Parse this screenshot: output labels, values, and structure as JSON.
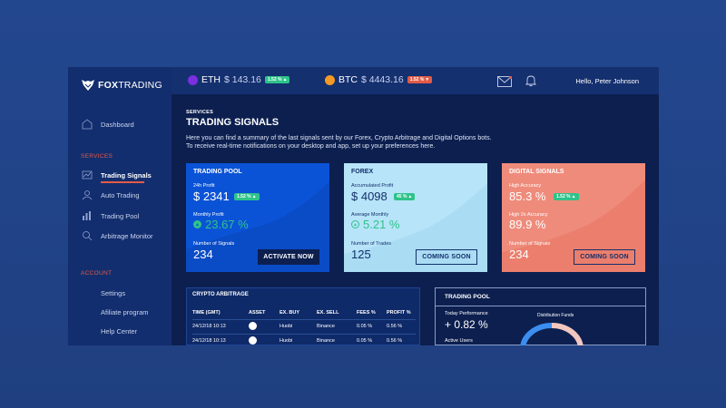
{
  "app": {
    "logo_fox": "FOX",
    "logo_trading": "TRADING"
  },
  "sidebar": {
    "items": [
      {
        "label": "Dashboard"
      },
      {
        "label": "Trading Signals"
      },
      {
        "label": "Auto Trading"
      },
      {
        "label": "Trading Pool"
      },
      {
        "label": "Arbitrage Monitor"
      }
    ],
    "services_label": "SERVICES",
    "account_label": "ACCOUNT",
    "account_items": [
      {
        "label": "Settings"
      },
      {
        "label": "Afiliate program"
      },
      {
        "label": "Help Center"
      }
    ]
  },
  "header": {
    "eth": {
      "symbol": "ETH",
      "price": "$ 143.16",
      "change": "1.52 %",
      "direction": "up",
      "color": "#7b2fe0"
    },
    "btc": {
      "symbol": "BTC",
      "price": "$ 4443.16",
      "change": "1.52 %",
      "direction": "down",
      "color": "#f39a26"
    },
    "greeting": "Hello, Peter Johnson"
  },
  "main": {
    "section": "SERVICES",
    "title": "TRADING SIGNALS",
    "description_line1": "Here you can find a summary of the last signals sent by our Forex, Crypto Arbitrage and Digital Options bots.",
    "description_line2": "To receive real-time notifications on your desktop and app, set up your preferences here."
  },
  "cards": [
    {
      "title": "TRADING POOL",
      "label1": "24h Profit",
      "value1": "$ 2341",
      "badge": "1.52 %",
      "label2": "Monthly Profit",
      "value2": "23.67 %",
      "label3": "Number of Signals",
      "value3": "234",
      "cta": "ACTIVATE NOW"
    },
    {
      "title": "FOREX",
      "label1": "Accumulated Profit",
      "value1": "$ 4098",
      "badge": "45 %",
      "label2": "Average Monthly",
      "value2": "5.21 %",
      "label3": "Number of Trades",
      "value3": "125",
      "cta": "COMING SOON"
    },
    {
      "title": "DIGITAL SIGNALS",
      "label1": "High Accuracy",
      "value1": "85.3 %",
      "badge": "1.52 %",
      "label2": "High 2x Accuracy",
      "value2": "89.9 %",
      "label3": "Number of Signals",
      "value3": "234",
      "cta": "COMING SOON"
    }
  ],
  "arbitrage": {
    "title": "CRYPTO ARBITRAGE",
    "columns": [
      "TIME (GMT)",
      "ASSET",
      "EX. BUY",
      "EX. SELL",
      "FEES %",
      "PROFIT %"
    ],
    "rows": [
      [
        "24/12/18 10:13",
        "",
        "Huobi",
        "Binance",
        "0.05 %",
        "0.56 %"
      ],
      [
        "24/12/18 10:13",
        "",
        "Huobi",
        "Binance",
        "0.05 %",
        "0.56 %"
      ]
    ]
  },
  "pool": {
    "title": "TRADING POOL",
    "today_label": "Today Performance",
    "today_value": "+ 0.82 %",
    "active_users_label": "Active Users",
    "distribution_label": "Distribution Funds"
  },
  "colors": {
    "background": "#23478f",
    "frame": "#0c1f4f",
    "sidebar": "#132e6e",
    "accent_red": "#e35b47",
    "up_green": "#2ec38a",
    "card_blue": "#0b53d6",
    "card_light": "#b7e4f8",
    "card_salmon": "#ef8b7b"
  },
  "icons": [
    "fox-logo-icon",
    "dashboard-icon",
    "signals-icon",
    "auto-trading-icon",
    "pool-chart-icon",
    "arbitrage-icon",
    "mail-icon",
    "bell-icon",
    "arrow-up-icon",
    "arrow-down-icon"
  ]
}
